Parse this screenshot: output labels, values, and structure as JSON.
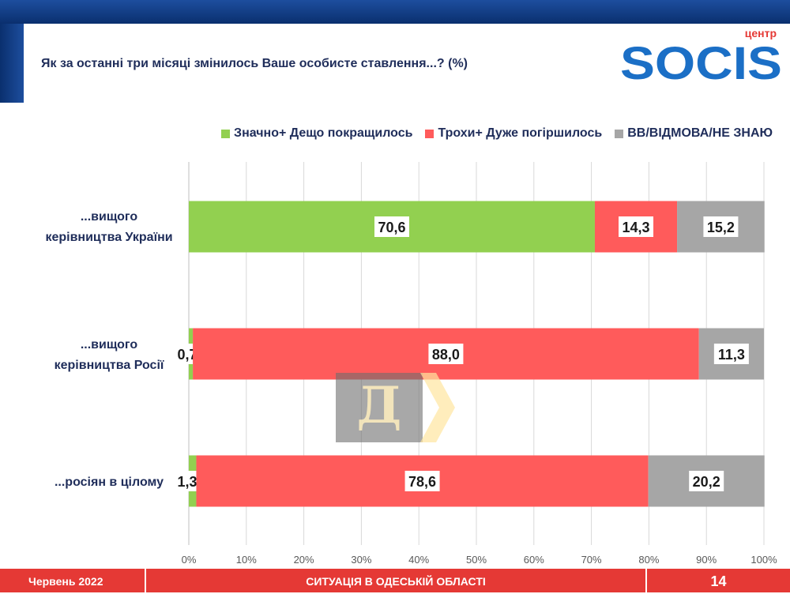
{
  "title": "Як за останні три місяці змінилось Ваше особисте ставлення...? (%)",
  "logo": {
    "small": "центр",
    "main": "SOCIS"
  },
  "watermark": "Д",
  "footer": {
    "date": "Червень 2022",
    "section": "СИТУАЦІЯ В ОДЕСЬКІЙ ОБЛАСТІ",
    "page": "14"
  },
  "colors": {
    "improved": "#92d050",
    "worsened": "#ff5b5b",
    "dk": "#a6a6a6",
    "text": "#1f2d5a",
    "footer": "#e53935"
  },
  "chart_data": {
    "type": "bar",
    "orientation": "horizontal",
    "stacked": true,
    "categories": [
      "...вищого керівництва України",
      "...вищого керівництва Росії",
      "...росіян в цілому"
    ],
    "series": [
      {
        "name": "Значно+ Дещо покращилось",
        "color": "#92d050",
        "values": [
          70.6,
          0.7,
          1.3
        ],
        "labels": [
          "70,6",
          "0,7",
          "1,3"
        ]
      },
      {
        "name": "Трохи+ Дуже погіршилось",
        "color": "#ff5b5b",
        "values": [
          14.3,
          88.0,
          78.6
        ],
        "labels": [
          "14,3",
          "88,0",
          "78,6"
        ]
      },
      {
        "name": "ВВ/ВІДМОВА/НЕ ЗНАЮ",
        "color": "#a6a6a6",
        "values": [
          15.2,
          11.3,
          20.2
        ],
        "labels": [
          "15,2",
          "11,3",
          "20,2"
        ]
      }
    ],
    "xlim": [
      0,
      100
    ],
    "xticks": [
      "0%",
      "10%",
      "20%",
      "30%",
      "40%",
      "50%",
      "60%",
      "70%",
      "80%",
      "90%",
      "100%"
    ],
    "grid": true,
    "legend": "top"
  }
}
